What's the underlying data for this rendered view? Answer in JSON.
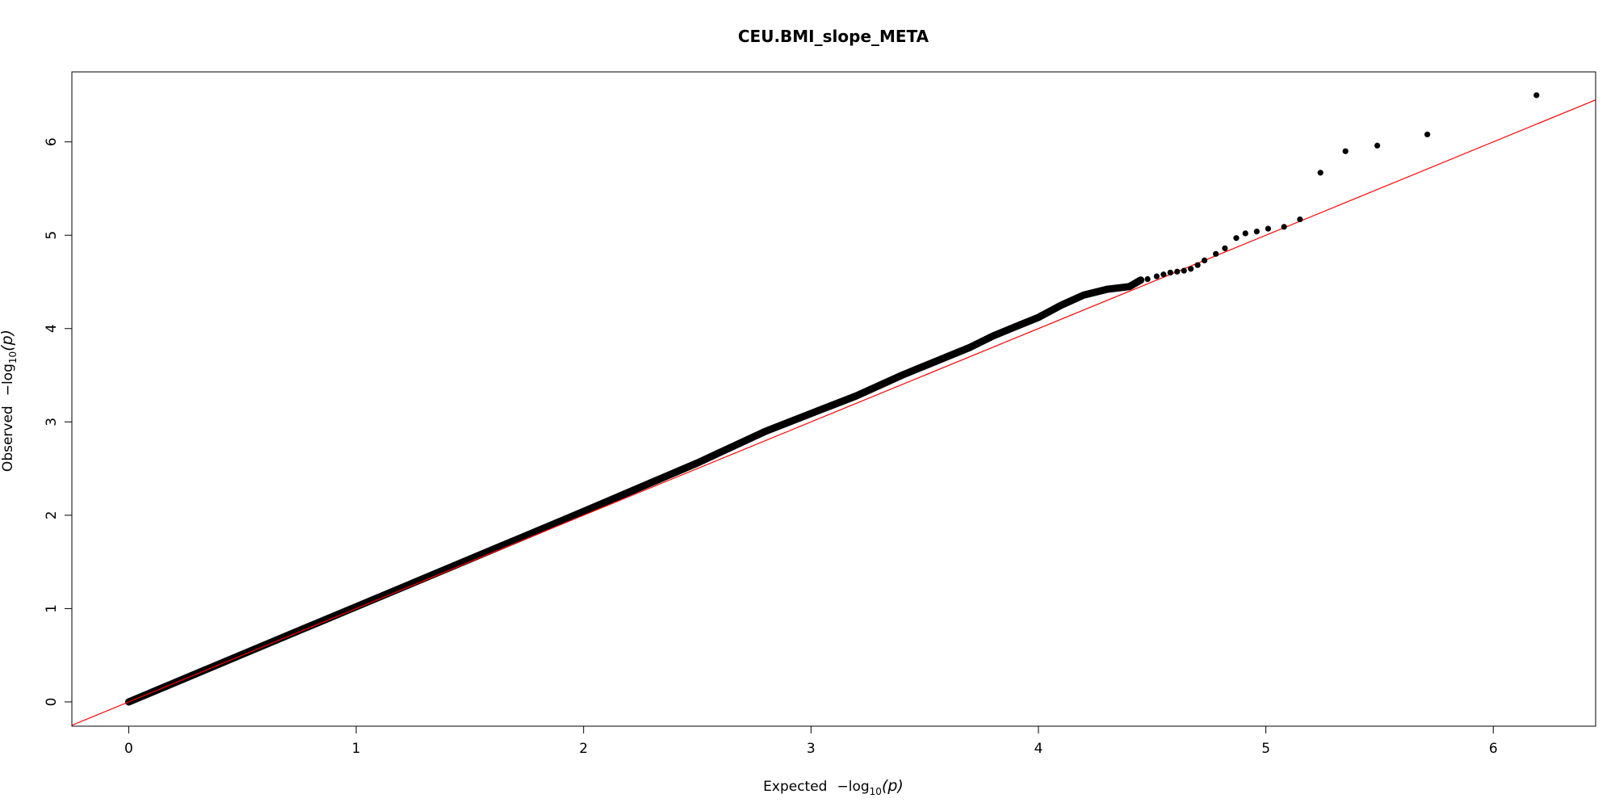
{
  "chart_data": {
    "type": "scatter",
    "title": "CEU.BMI_slope_META",
    "xlabel": {
      "text": "Expected",
      "math_prefix": "−log",
      "math_sub": "10",
      "math_arg": "(p)"
    },
    "ylabel": {
      "text": "Observed",
      "math_prefix": "−log",
      "math_sub": "10",
      "math_arg": "(p)"
    },
    "xlim": [
      -0.25,
      6.45
    ],
    "ylim": [
      -0.26,
      6.75
    ],
    "x_ticks": [
      0,
      1,
      2,
      3,
      4,
      5,
      6
    ],
    "y_ticks": [
      0,
      1,
      2,
      3,
      4,
      5,
      6
    ],
    "grid": false,
    "legend": "none",
    "reference_line": {
      "slope": 1,
      "intercept": 0,
      "color": "#ff0000"
    },
    "point_color": "#000000",
    "trend_curve": [
      {
        "x": 0.0,
        "y": 0.0
      },
      {
        "x": 0.5,
        "y": 0.51
      },
      {
        "x": 1.0,
        "y": 1.02
      },
      {
        "x": 1.5,
        "y": 1.53
      },
      {
        "x": 2.0,
        "y": 2.04
      },
      {
        "x": 2.5,
        "y": 2.56
      },
      {
        "x": 2.8,
        "y": 2.9
      },
      {
        "x": 3.0,
        "y": 3.09
      },
      {
        "x": 3.2,
        "y": 3.28
      },
      {
        "x": 3.4,
        "y": 3.5
      },
      {
        "x": 3.6,
        "y": 3.7
      },
      {
        "x": 3.7,
        "y": 3.8
      },
      {
        "x": 3.8,
        "y": 3.92
      },
      {
        "x": 3.9,
        "y": 4.02
      },
      {
        "x": 4.0,
        "y": 4.12
      },
      {
        "x": 4.1,
        "y": 4.25
      },
      {
        "x": 4.2,
        "y": 4.36
      },
      {
        "x": 4.3,
        "y": 4.42
      },
      {
        "x": 4.4,
        "y": 4.45
      },
      {
        "x": 4.45,
        "y": 4.52
      }
    ],
    "points": [
      {
        "x": 4.48,
        "y": 4.53
      },
      {
        "x": 4.52,
        "y": 4.56
      },
      {
        "x": 4.55,
        "y": 4.58
      },
      {
        "x": 4.58,
        "y": 4.6
      },
      {
        "x": 4.61,
        "y": 4.61
      },
      {
        "x": 4.64,
        "y": 4.62
      },
      {
        "x": 4.67,
        "y": 4.64
      },
      {
        "x": 4.7,
        "y": 4.68
      },
      {
        "x": 4.73,
        "y": 4.73
      },
      {
        "x": 4.78,
        "y": 4.8
      },
      {
        "x": 4.82,
        "y": 4.86
      },
      {
        "x": 4.87,
        "y": 4.97
      },
      {
        "x": 4.91,
        "y": 5.02
      },
      {
        "x": 4.96,
        "y": 5.04
      },
      {
        "x": 5.01,
        "y": 5.07
      },
      {
        "x": 5.08,
        "y": 5.09
      },
      {
        "x": 5.15,
        "y": 5.17
      },
      {
        "x": 5.24,
        "y": 5.67
      },
      {
        "x": 5.35,
        "y": 5.9
      },
      {
        "x": 5.49,
        "y": 5.96
      },
      {
        "x": 5.71,
        "y": 6.08
      },
      {
        "x": 6.19,
        "y": 6.5
      }
    ]
  }
}
